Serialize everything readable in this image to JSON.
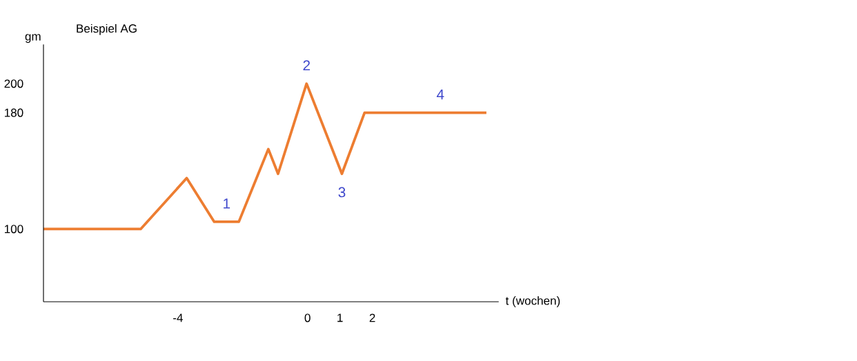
{
  "chart_data": {
    "type": "line",
    "title": "Beispiel AG",
    "xlabel": "t (wochen)",
    "ylabel": "gm",
    "x": [
      -8.15,
      -5.15,
      -3.73,
      -2.88,
      -2.12,
      -1.21,
      -0.91,
      -0.03,
      1.06,
      1.76,
      5.52
    ],
    "values": [
      100,
      100,
      135,
      105,
      105,
      155,
      138,
      200,
      138,
      180,
      180
    ],
    "color": "#ed7d31",
    "xlim": [
      -8.15,
      5.9
    ],
    "ylim": [
      50,
      227
    ],
    "xticks": [
      -4,
      0,
      1,
      2
    ],
    "yticks": [
      100,
      180,
      200
    ],
    "annotations": [
      {
        "text": "1",
        "x": -2.5,
        "y": 105
      },
      {
        "text": "2",
        "x": -0.03,
        "y": 200
      },
      {
        "text": "3",
        "x": 1.06,
        "y": 138
      },
      {
        "text": "4",
        "x": 4.1,
        "y": 180
      }
    ]
  }
}
